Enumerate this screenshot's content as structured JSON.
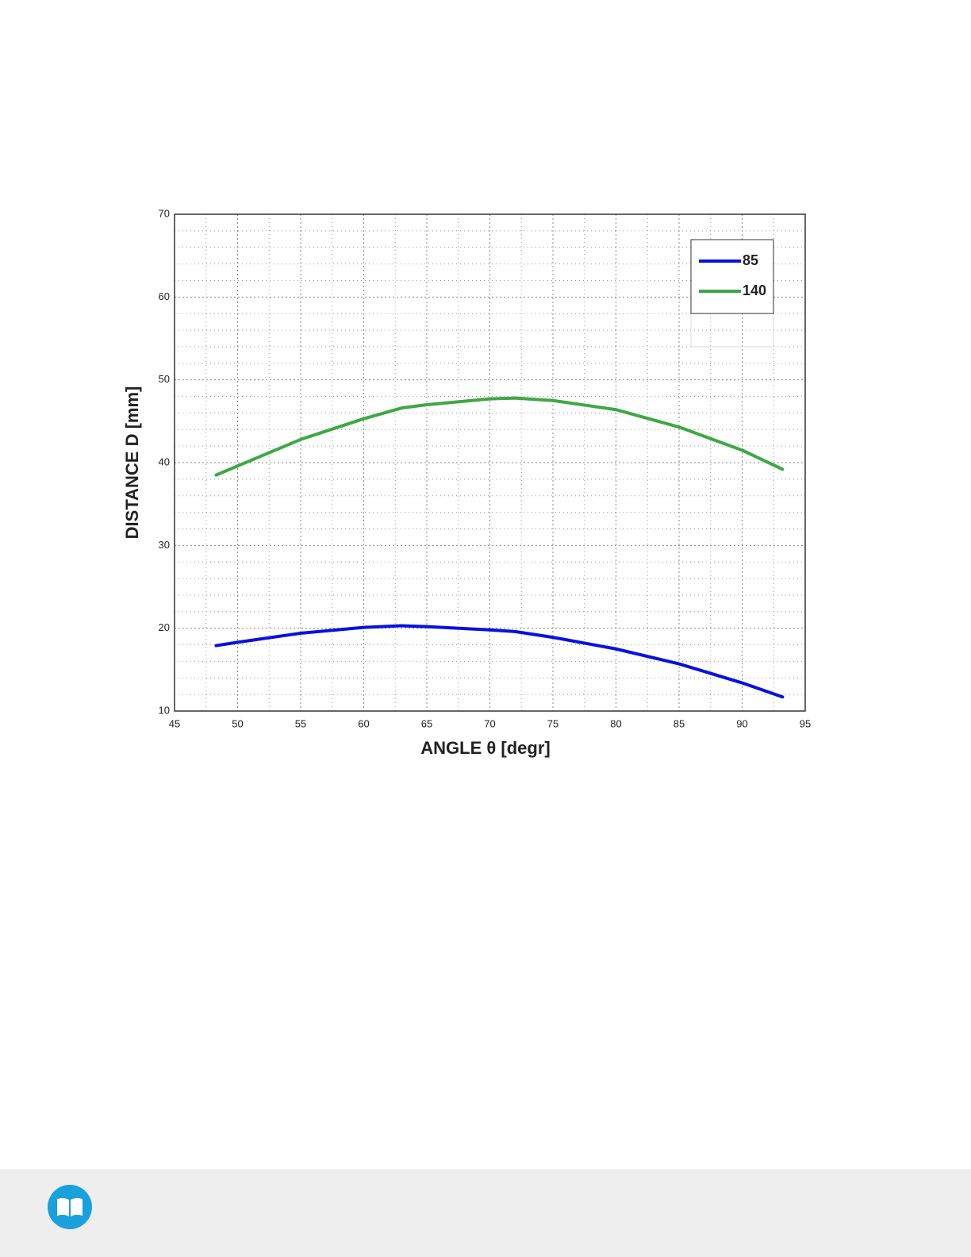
{
  "chart_data": {
    "type": "line",
    "xlabel": "ANGLE θ [degr]",
    "ylabel": "DISTANCE D  [mm]",
    "x": [
      48.3,
      50,
      55,
      60,
      63,
      65,
      70,
      72,
      75,
      80,
      85,
      90,
      93.2
    ],
    "series": [
      {
        "name": "85",
        "color": "#0a10e0",
        "values": [
          17.9,
          18.3,
          19.4,
          20.1,
          20.3,
          20.2,
          19.8,
          19.6,
          18.9,
          17.5,
          15.7,
          13.4,
          11.7
        ]
      },
      {
        "name": "140",
        "color": "#3ea845",
        "values": [
          38.5,
          39.6,
          42.8,
          45.3,
          46.6,
          47.0,
          47.7,
          47.8,
          47.5,
          46.4,
          44.3,
          41.5,
          39.2
        ]
      }
    ],
    "xlim": [
      45,
      95
    ],
    "xticks": [
      45,
      50,
      55,
      60,
      65,
      70,
      75,
      80,
      85,
      90,
      95
    ],
    "ylim": [
      10,
      70
    ],
    "yticks": [
      10,
      20,
      30,
      40,
      50,
      60,
      70
    ],
    "grid": true,
    "legend": "upper right"
  }
}
